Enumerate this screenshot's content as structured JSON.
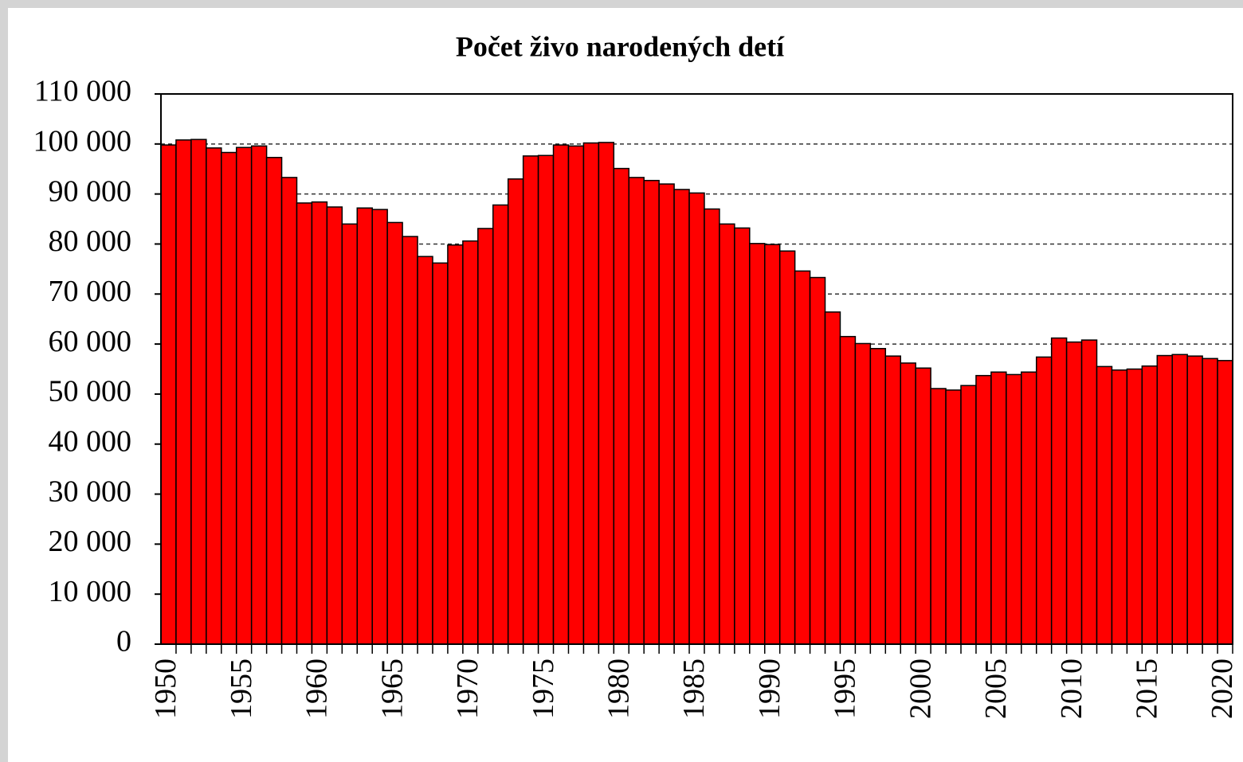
{
  "chart_data": {
    "type": "bar",
    "title": "Počet živo narodených detí",
    "categories": [
      "1950",
      null,
      null,
      null,
      null,
      "1955",
      null,
      null,
      null,
      null,
      "1960",
      null,
      null,
      null,
      null,
      "1965",
      null,
      null,
      null,
      null,
      "1970",
      null,
      null,
      null,
      null,
      "1975",
      null,
      null,
      null,
      null,
      "1980",
      null,
      null,
      null,
      null,
      "1985",
      null,
      null,
      null,
      null,
      "1990",
      null,
      null,
      null,
      null,
      "1995",
      null,
      null,
      null,
      null,
      "2000",
      null,
      null,
      null,
      null,
      "2005",
      null,
      null,
      null,
      null,
      "2010",
      null,
      null,
      null,
      null,
      "2015",
      null,
      null,
      null,
      null,
      "2020"
    ],
    "values": [
      99800,
      100800,
      100900,
      99200,
      98300,
      99300,
      99600,
      97300,
      93300,
      88200,
      88400,
      87400,
      84000,
      87200,
      86900,
      84300,
      81500,
      77500,
      76200,
      79800,
      80600,
      83100,
      87800,
      93000,
      97600,
      97700,
      99800,
      99600,
      100200,
      100300,
      95100,
      93300,
      92700,
      92000,
      90900,
      90200,
      87000,
      84000,
      83200,
      80100,
      79900,
      78600,
      74600,
      73300,
      66400,
      61500,
      60100,
      59100,
      57600,
      56200,
      55200,
      51100,
      50800,
      51700,
      53700,
      54400,
      53900,
      54400,
      57400,
      61200,
      60400,
      60800,
      55500,
      54800,
      55000,
      55600,
      57700,
      57900,
      57600,
      57100,
      56700
    ],
    "color": "#ff0000",
    "ylim": [
      0,
      110000
    ],
    "yticks": [
      0,
      {
        "value": 10000,
        "label": "10 000"
      },
      {
        "value": 20000,
        "label": "20 000"
      },
      {
        "value": 30000,
        "label": "30 000"
      },
      {
        "value": 40000,
        "label": "40 000"
      },
      {
        "value": 50000,
        "label": "50 000"
      },
      {
        "value": 60000,
        "label": "60 000"
      },
      {
        "value": 70000,
        "label": "70 000"
      },
      {
        "value": 80000,
        "label": "80 000"
      },
      {
        "value": 90000,
        "label": "90 000"
      },
      {
        "value": 100000,
        "label": "100 000"
      },
      {
        "value": 110000,
        "label": "110 000"
      }
    ],
    "grid": true
  }
}
